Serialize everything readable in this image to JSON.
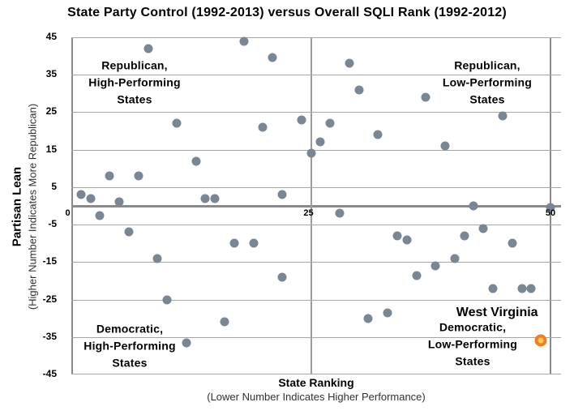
{
  "title": "State Party Control (1992-2013) versus Overall SQLI Rank (1992-2012)",
  "x_axis": {
    "title": "State Ranking",
    "subtitle": "(Lower Number Indicates Higher Performance)",
    "ticks": [
      0,
      25,
      50
    ]
  },
  "y_axis": {
    "title": "Partisan Lean",
    "subtitle": "(Higher Number Indicates More Republican)",
    "ticks": [
      45,
      35,
      25,
      15,
      5,
      -5,
      -15,
      -25,
      -35,
      -45
    ]
  },
  "quadrants": {
    "top_left": [
      "Republican,",
      "High-Performing",
      "States"
    ],
    "top_right": [
      "Republican,",
      "Low-Performing",
      "States"
    ],
    "bottom_left": [
      "Democratic,",
      "High-Performing",
      "States"
    ],
    "bottom_right": [
      "Democratic,",
      "Low-Performing",
      "States"
    ]
  },
  "highlight": {
    "label": "West Virginia"
  },
  "colors": {
    "point": "#7B8695",
    "grid": "#A6A6A6",
    "grid_mid": "#9B9B9B",
    "axis": "#8A8A8A",
    "highlight_outer": "#F07E26",
    "highlight_inner": "#FFD24A"
  },
  "chart_data": {
    "type": "scatter",
    "title": "State Party Control (1992-2013) versus Overall SQLI Rank (1992-2012)",
    "xlabel": "State Ranking (Lower Number Indicates Higher Performance)",
    "ylabel": "Partisan Lean (Higher Number Indicates More Republican)",
    "xlim": [
      0,
      50
    ],
    "ylim": [
      -45,
      45
    ],
    "x_ticks": [
      0,
      25,
      50
    ],
    "y_ticks": [
      45,
      35,
      25,
      15,
      5,
      -5,
      -15,
      -25,
      -35,
      -45
    ],
    "grid": true,
    "zero_line_y": 0,
    "series": [
      {
        "name": "States",
        "highlight": false,
        "points": [
          [
            1,
            3
          ],
          [
            2,
            2
          ],
          [
            3,
            -2.5
          ],
          [
            4,
            8
          ],
          [
            5,
            1
          ],
          [
            6,
            -7
          ],
          [
            7,
            8
          ],
          [
            8,
            42
          ],
          [
            9,
            -14
          ],
          [
            10,
            -25
          ],
          [
            11,
            22
          ],
          [
            12,
            -36.5
          ],
          [
            13,
            12
          ],
          [
            14,
            2
          ],
          [
            15,
            2
          ],
          [
            16,
            -31
          ],
          [
            17,
            -10
          ],
          [
            18,
            44
          ],
          [
            19,
            -10
          ],
          [
            20,
            21
          ],
          [
            21,
            39.5
          ],
          [
            22,
            3
          ],
          [
            22,
            -19
          ],
          [
            24,
            23
          ],
          [
            25,
            14
          ],
          [
            26,
            17
          ],
          [
            27,
            22
          ],
          [
            28,
            -2
          ],
          [
            29,
            38
          ],
          [
            30,
            31
          ],
          [
            31,
            -30
          ],
          [
            32,
            19
          ],
          [
            33,
            -28.5
          ],
          [
            34,
            -8
          ],
          [
            35,
            -9
          ],
          [
            36,
            -18.5
          ],
          [
            37,
            29
          ],
          [
            38,
            -16
          ],
          [
            39,
            16
          ],
          [
            40,
            -14
          ],
          [
            41,
            -8
          ],
          [
            42,
            0
          ],
          [
            43,
            -6
          ],
          [
            44,
            -22
          ],
          [
            45,
            24
          ],
          [
            46,
            -10
          ],
          [
            47,
            -22
          ],
          [
            48,
            -22
          ],
          [
            50,
            -0.5
          ]
        ]
      },
      {
        "name": "West Virginia",
        "highlight": true,
        "points": [
          [
            49,
            -36
          ]
        ]
      }
    ]
  }
}
